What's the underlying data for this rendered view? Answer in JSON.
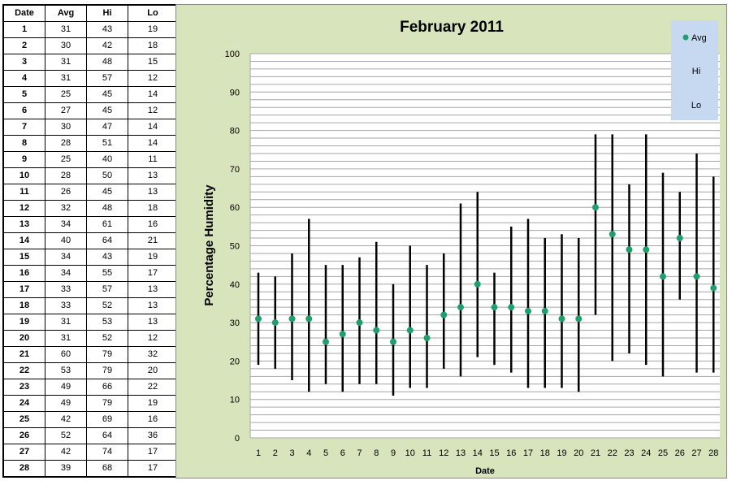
{
  "table": {
    "headers": [
      "Date",
      "Avg",
      "Hi",
      "Lo"
    ],
    "rows": [
      [
        "1",
        "31",
        "43",
        "19"
      ],
      [
        "2",
        "30",
        "42",
        "18"
      ],
      [
        "3",
        "31",
        "48",
        "15"
      ],
      [
        "4",
        "31",
        "57",
        "12"
      ],
      [
        "5",
        "25",
        "45",
        "14"
      ],
      [
        "6",
        "27",
        "45",
        "12"
      ],
      [
        "7",
        "30",
        "47",
        "14"
      ],
      [
        "8",
        "28",
        "51",
        "14"
      ],
      [
        "9",
        "25",
        "40",
        "11"
      ],
      [
        "10",
        "28",
        "50",
        "13"
      ],
      [
        "11",
        "26",
        "45",
        "13"
      ],
      [
        "12",
        "32",
        "48",
        "18"
      ],
      [
        "13",
        "34",
        "61",
        "16"
      ],
      [
        "14",
        "40",
        "64",
        "21"
      ],
      [
        "15",
        "34",
        "43",
        "19"
      ],
      [
        "16",
        "34",
        "55",
        "17"
      ],
      [
        "17",
        "33",
        "57",
        "13"
      ],
      [
        "18",
        "33",
        "52",
        "13"
      ],
      [
        "19",
        "31",
        "53",
        "13"
      ],
      [
        "20",
        "31",
        "52",
        "12"
      ],
      [
        "21",
        "60",
        "79",
        "32"
      ],
      [
        "22",
        "53",
        "79",
        "20"
      ],
      [
        "23",
        "49",
        "66",
        "22"
      ],
      [
        "24",
        "49",
        "79",
        "19"
      ],
      [
        "25",
        "42",
        "69",
        "16"
      ],
      [
        "26",
        "52",
        "64",
        "36"
      ],
      [
        "27",
        "42",
        "74",
        "17"
      ],
      [
        "28",
        "39",
        "68",
        "17"
      ]
    ]
  },
  "colors": {
    "chart_background": "#d8e4bc",
    "plot_background": "#ffffff",
    "legend_background": "#c6d9f1",
    "avg_marker": "#1f9e6e",
    "range_line": "#000000",
    "grid": "#a6a6a6"
  },
  "chart_data": {
    "type": "scatter",
    "title": "February 2011",
    "xlabel": "Date",
    "ylabel": "Percentage Humidity",
    "x": [
      1,
      2,
      3,
      4,
      5,
      6,
      7,
      8,
      9,
      10,
      11,
      12,
      13,
      14,
      15,
      16,
      17,
      18,
      19,
      20,
      21,
      22,
      23,
      24,
      25,
      26,
      27,
      28
    ],
    "series": [
      {
        "name": "Avg",
        "values": [
          31,
          30,
          31,
          31,
          25,
          27,
          30,
          28,
          25,
          28,
          26,
          32,
          34,
          40,
          34,
          34,
          33,
          33,
          31,
          31,
          60,
          53,
          49,
          49,
          42,
          52,
          42,
          39
        ]
      },
      {
        "name": "Hi",
        "values": [
          43,
          42,
          48,
          57,
          45,
          45,
          47,
          51,
          40,
          50,
          45,
          48,
          61,
          64,
          43,
          55,
          57,
          52,
          53,
          52,
          79,
          79,
          66,
          79,
          69,
          64,
          74,
          68
        ]
      },
      {
        "name": "Lo",
        "values": [
          19,
          18,
          15,
          12,
          14,
          12,
          14,
          14,
          11,
          13,
          13,
          18,
          16,
          21,
          19,
          17,
          13,
          13,
          13,
          12,
          32,
          20,
          22,
          19,
          16,
          36,
          17,
          17
        ]
      }
    ],
    "ylim": [
      0,
      100
    ],
    "y_ticks": [
      0,
      10,
      20,
      30,
      40,
      50,
      60,
      70,
      80,
      90,
      100
    ],
    "grid": true,
    "legend": "top-right"
  }
}
